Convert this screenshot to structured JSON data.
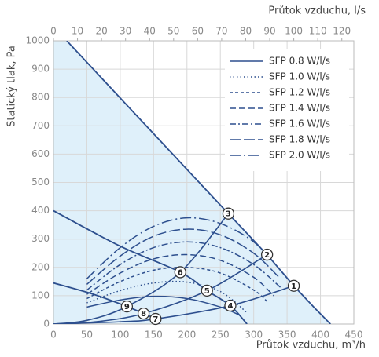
{
  "chart_data": {
    "type": "line",
    "x_label": "Průtok vzduchu, m³/h",
    "x2_label": "Průtok vzduchu, l/s",
    "y_label": "Statický tlak, Pa",
    "xlim": [
      0,
      450
    ],
    "xticks": [
      0,
      50,
      100,
      150,
      200,
      250,
      300,
      350,
      400,
      450
    ],
    "x2lim": [
      0,
      125
    ],
    "x2ticks": [
      0,
      10,
      20,
      30,
      40,
      50,
      60,
      70,
      80,
      90,
      100,
      110,
      120
    ],
    "ylim": [
      0,
      1000
    ],
    "yticks": [
      0,
      100,
      200,
      300,
      400,
      500,
      600,
      700,
      800,
      900,
      1000
    ],
    "grid": true,
    "legend": "top-right",
    "color": "#2d4f8e",
    "fill_color": "#dff0fa",
    "sfp_curves": [
      {
        "name": "SFP 0.8 W/l/s",
        "dash": "",
        "x": [
          50,
          100,
          150,
          200,
          250,
          280
        ],
        "values": [
          60,
          85,
          98,
          90,
          60,
          30
        ]
      },
      {
        "name": "SFP 1.0 W/l/s",
        "dash": "1.5 3",
        "x": [
          50,
          100,
          150,
          200,
          250,
          290
        ],
        "values": [
          75,
          118,
          145,
          148,
          115,
          40
        ]
      },
      {
        "name": "SFP 1.2 W/l/s",
        "dash": "4 3",
        "x": [
          50,
          100,
          150,
          200,
          250,
          300,
          320
        ],
        "values": [
          90,
          150,
          190,
          200,
          180,
          120,
          80
        ]
      },
      {
        "name": "SFP 1.4 W/l/s",
        "dash": "8 4",
        "x": [
          50,
          100,
          150,
          200,
          250,
          300,
          330
        ],
        "values": [
          105,
          180,
          230,
          245,
          225,
          165,
          100
        ]
      },
      {
        "name": "SFP 1.6 W/l/s",
        "dash": "8 3 2 3",
        "x": [
          50,
          100,
          150,
          200,
          250,
          300,
          340
        ],
        "values": [
          120,
          210,
          270,
          290,
          270,
          210,
          130
        ]
      },
      {
        "name": "SFP 1.8 W/l/s",
        "dash": "14 4",
        "x": [
          50,
          100,
          150,
          200,
          250,
          300,
          340
        ],
        "values": [
          140,
          240,
          310,
          335,
          315,
          250,
          160
        ]
      },
      {
        "name": "SFP 2.0 W/l/s",
        "dash": "14 4 2 4",
        "x": [
          50,
          100,
          150,
          200,
          250,
          300,
          340
        ],
        "values": [
          160,
          270,
          345,
          375,
          355,
          290,
          190
        ]
      }
    ],
    "fan_curves": [
      {
        "x": [
          20,
          100,
          150,
          200,
          262,
          320,
          360,
          390,
          415
        ],
        "values": [
          1000,
          798,
          672,
          546,
          390,
          245,
          135,
          60,
          0
        ]
      },
      {
        "x": [
          0,
          100,
          190,
          230,
          265,
          290
        ],
        "values": [
          400,
          275,
          183,
          118,
          65,
          0
        ]
      },
      {
        "x": [
          0,
          60,
          110,
          135,
          153,
          160
        ],
        "values": [
          145,
          105,
          62,
          37,
          18,
          0
        ]
      }
    ],
    "system_curves": [
      {
        "x": [
          0,
          100,
          153,
          265,
          360
        ],
        "values": [
          0,
          8,
          18,
          65,
          135
        ]
      },
      {
        "x": [
          0,
          60,
          135,
          230,
          320
        ],
        "values": [
          0,
          7,
          37,
          118,
          245
        ]
      },
      {
        "x": [
          0,
          50,
          110,
          190,
          262
        ],
        "values": [
          0,
          13,
          62,
          183,
          390
        ]
      }
    ],
    "points": [
      {
        "label": "1",
        "x": 360,
        "y": 135
      },
      {
        "label": "2",
        "x": 320,
        "y": 245
      },
      {
        "label": "3",
        "x": 262,
        "y": 390
      },
      {
        "label": "4",
        "x": 265,
        "y": 65
      },
      {
        "label": "5",
        "x": 230,
        "y": 118
      },
      {
        "label": "6",
        "x": 190,
        "y": 183
      },
      {
        "label": "7",
        "x": 153,
        "y": 18
      },
      {
        "label": "8",
        "x": 135,
        "y": 37
      },
      {
        "label": "9",
        "x": 110,
        "y": 62
      }
    ]
  }
}
